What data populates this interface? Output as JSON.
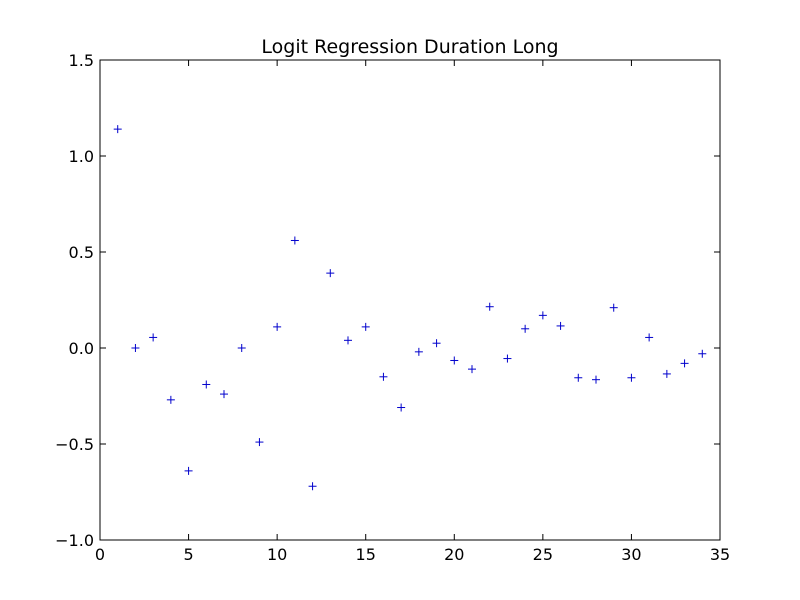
{
  "chart_data": {
    "type": "scatter",
    "title": "Logit Regression Duration Long",
    "xlabel": "",
    "ylabel": "",
    "xlim": [
      0,
      35
    ],
    "ylim": [
      -1.0,
      1.5
    ],
    "xticks": [
      0,
      5,
      10,
      15,
      20,
      25,
      30,
      35
    ],
    "xtick_labels": [
      "0",
      "5",
      "10",
      "15",
      "20",
      "25",
      "30",
      "35"
    ],
    "yticks": [
      -1.0,
      -0.5,
      0.0,
      0.5,
      1.0,
      1.5
    ],
    "ytick_labels": [
      "−1.0",
      "−0.5",
      "0.0",
      "0.5",
      "1.0",
      "1.5"
    ],
    "marker": "+",
    "color": "#0000cc",
    "grid": false,
    "series": [
      {
        "x": [
          1,
          2,
          3,
          4,
          5,
          6,
          7,
          8,
          9,
          10,
          11,
          12,
          13,
          14,
          15,
          16,
          17,
          18,
          19,
          20,
          21,
          22,
          23,
          24,
          25,
          26,
          27,
          28,
          29,
          30,
          31,
          32,
          33,
          34
        ],
        "values": [
          1.14,
          0.0,
          0.055,
          -0.27,
          -0.64,
          -0.19,
          -0.24,
          0.0,
          -0.49,
          0.11,
          0.56,
          -0.72,
          0.39,
          0.04,
          0.11,
          -0.15,
          -0.31,
          -0.02,
          0.025,
          -0.065,
          -0.11,
          0.215,
          -0.055,
          0.1,
          0.17,
          0.115,
          -0.155,
          -0.165,
          0.21,
          -0.155,
          0.055,
          -0.135,
          -0.08,
          -0.03
        ]
      }
    ]
  }
}
